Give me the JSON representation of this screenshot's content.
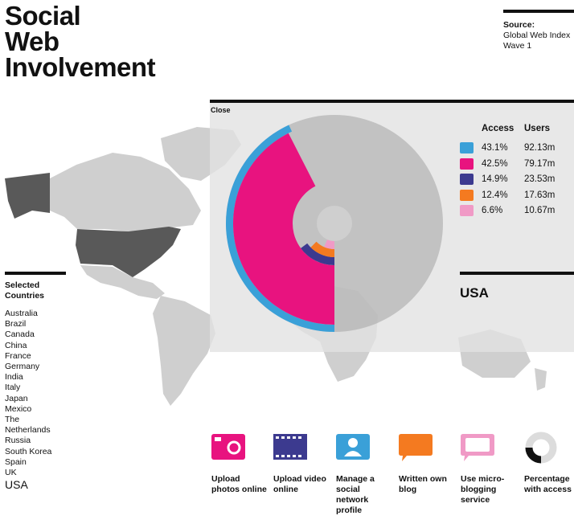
{
  "title": [
    "Social",
    "Web",
    "Involvement"
  ],
  "source": {
    "label": "Source:",
    "text_lines": [
      "Global Web Index",
      "Wave 1"
    ]
  },
  "close_label": "Close",
  "legend": {
    "headers": {
      "access": "Access",
      "users": "Users"
    },
    "rows": [
      {
        "icon": "social-network-icon",
        "color": "#3aa0d8",
        "access": "43.1%",
        "users": "92.13m"
      },
      {
        "icon": "photo-icon",
        "color": "#e8137f",
        "access": "42.5%",
        "users": "79.17m"
      },
      {
        "icon": "video-icon",
        "color": "#3c3a8f",
        "access": "14.9%",
        "users": "23.53m"
      },
      {
        "icon": "blog-icon",
        "color": "#f47a20",
        "access": "12.4%",
        "users": "17.63m"
      },
      {
        "icon": "microblog-icon",
        "color": "#f09ac6",
        "access": "6.6%",
        "users": "10.67m"
      }
    ]
  },
  "selected_country": "USA",
  "countries": {
    "heading": "Selected Countries",
    "items": [
      "Australia",
      "Brazil",
      "Canada",
      "China",
      "France",
      "Germany",
      "India",
      "Italy",
      "Japan",
      "Mexico",
      "The Netherlands",
      "Russia",
      "South Korea",
      "Spain",
      "UK",
      "USA"
    ],
    "selected": "USA"
  },
  "key": [
    {
      "icon": "photo-icon",
      "color": "#e8137f",
      "label": "Upload photos online"
    },
    {
      "icon": "video-icon",
      "color": "#3c3a8f",
      "label": "Upload video online"
    },
    {
      "icon": "social-network-icon",
      "color": "#3aa0d8",
      "label": "Manage a social network profile"
    },
    {
      "icon": "blog-icon",
      "color": "#f47a20",
      "label": "Written own blog"
    },
    {
      "icon": "microblog-icon",
      "color": "#f09ac6",
      "label": "Use micro-blogging service"
    },
    {
      "icon": "percentage-icon",
      "color": "#111111",
      "label": "Percentage with access"
    }
  ],
  "chart_data": {
    "type": "radial-bar",
    "country": "USA",
    "max_percent": 100,
    "series": [
      {
        "name": "Manage a social network profile",
        "color": "#3aa0d8",
        "access_percent": 43.1,
        "users_millions": 92.13
      },
      {
        "name": "Upload photos online",
        "color": "#e8137f",
        "access_percent": 42.5,
        "users_millions": 79.17
      },
      {
        "name": "Upload video online",
        "color": "#3c3a8f",
        "access_percent": 14.9,
        "users_millions": 23.53
      },
      {
        "name": "Written own blog",
        "color": "#f47a20",
        "access_percent": 12.4,
        "users_millions": 17.63
      },
      {
        "name": "Use micro-blogging service",
        "color": "#f09ac6",
        "access_percent": 6.6,
        "users_millions": 10.67
      }
    ]
  },
  "colors": {
    "map_land": "#cfcfcf",
    "map_highlight": "#595959",
    "overlay": "#e1e1e1",
    "donut_bg": "#a8a8a8"
  }
}
